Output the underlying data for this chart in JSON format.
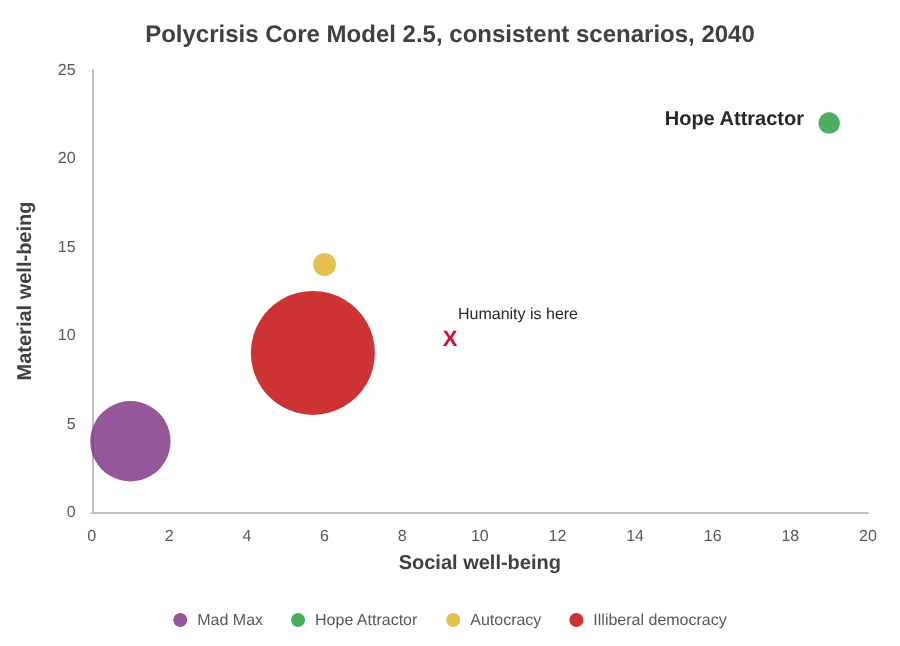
{
  "chart_data": {
    "type": "bubble",
    "title": "Polycrisis Core Model 2.5, consistent scenarios, 2040",
    "xlabel": "Social well-being",
    "ylabel": "Material well-being",
    "series": [
      {
        "name": "Mad Max",
        "color": "#7b2d7f",
        "x": [
          1
        ],
        "values": [
          4
        ],
        "sizes": [
          0.42
        ]
      },
      {
        "name": "Hope Attractor",
        "color": "#1f9a3c",
        "x": [
          19
        ],
        "values": [
          22
        ],
        "sizes": [
          0.03
        ]
      },
      {
        "name": "Autocracy",
        "color": "#e0b020",
        "x": [
          6
        ],
        "values": [
          14
        ],
        "sizes": [
          0.034
        ]
      },
      {
        "name": "Illiberal democracy",
        "color": "#c00000",
        "x": [
          5.7
        ],
        "values": [
          9
        ],
        "sizes": [
          1
        ]
      }
    ],
    "annotations": [
      "Hope Attractor",
      "X",
      "Humanity is here"
    ],
    "xlim": [
      0,
      20
    ],
    "xticks": [
      0,
      2,
      4,
      6,
      8,
      10,
      12,
      14,
      16,
      18,
      20
    ],
    "ylim": [
      0,
      25
    ],
    "yticks": [
      0,
      5,
      10,
      15,
      20,
      25
    ],
    "grid": false,
    "legend": "bottom"
  }
}
